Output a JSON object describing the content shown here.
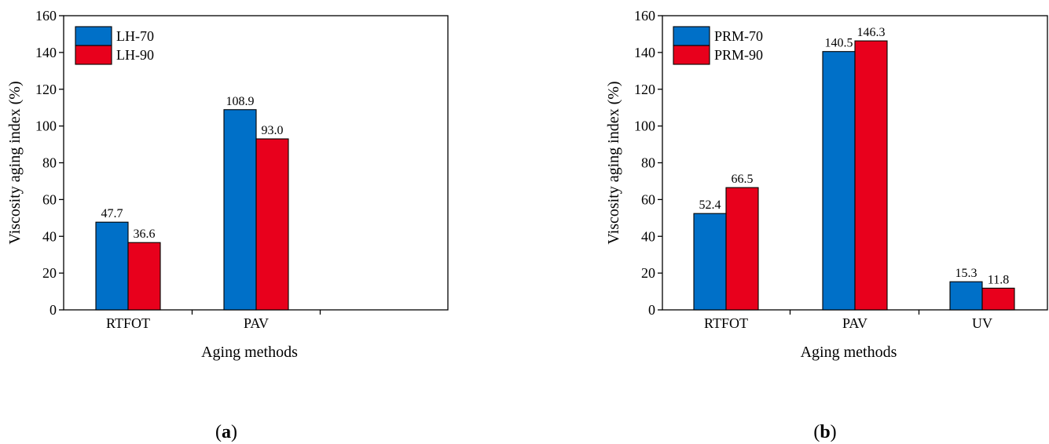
{
  "chart_data": [
    {
      "type": "bar",
      "panel_label": "a",
      "categories": [
        "RTFOT",
        "PAV",
        ""
      ],
      "series": [
        {
          "name": "LH-70",
          "values": [
            47.7,
            108.9,
            null
          ],
          "labels": [
            "47.7",
            "108.9",
            ""
          ]
        },
        {
          "name": "LH-90",
          "values": [
            36.6,
            93.0,
            null
          ],
          "labels": [
            "36.6",
            "93.0",
            ""
          ]
        }
      ],
      "xlabel": "Aging methods",
      "ylabel": "Viscosity aging index (%)",
      "ylim": [
        0,
        160
      ],
      "yticks": [
        "0",
        "20",
        "40",
        "60",
        "80",
        "100",
        "120",
        "140",
        "160"
      ],
      "legend": "top-left",
      "grid": false
    },
    {
      "type": "bar",
      "panel_label": "b",
      "categories": [
        "RTFOT",
        "PAV",
        "UV"
      ],
      "series": [
        {
          "name": "PRM-70",
          "values": [
            52.4,
            140.5,
            15.3
          ],
          "labels": [
            "52.4",
            "140.5",
            "15.3"
          ]
        },
        {
          "name": "PRM-90",
          "values": [
            66.5,
            146.3,
            11.8
          ],
          "labels": [
            "66.5",
            "146.3",
            "11.8"
          ]
        }
      ],
      "xlabel": "Aging methods",
      "ylabel": "Viscosity aging index (%)",
      "ylim": [
        0,
        160
      ],
      "yticks": [
        "0",
        "20",
        "40",
        "60",
        "80",
        "100",
        "120",
        "140",
        "160"
      ],
      "legend": "top-left",
      "grid": false
    }
  ],
  "colors": {
    "series1": "#0070C8",
    "series2": "#E8001C",
    "axis": "#000000"
  },
  "captions": [
    "a",
    "b"
  ]
}
